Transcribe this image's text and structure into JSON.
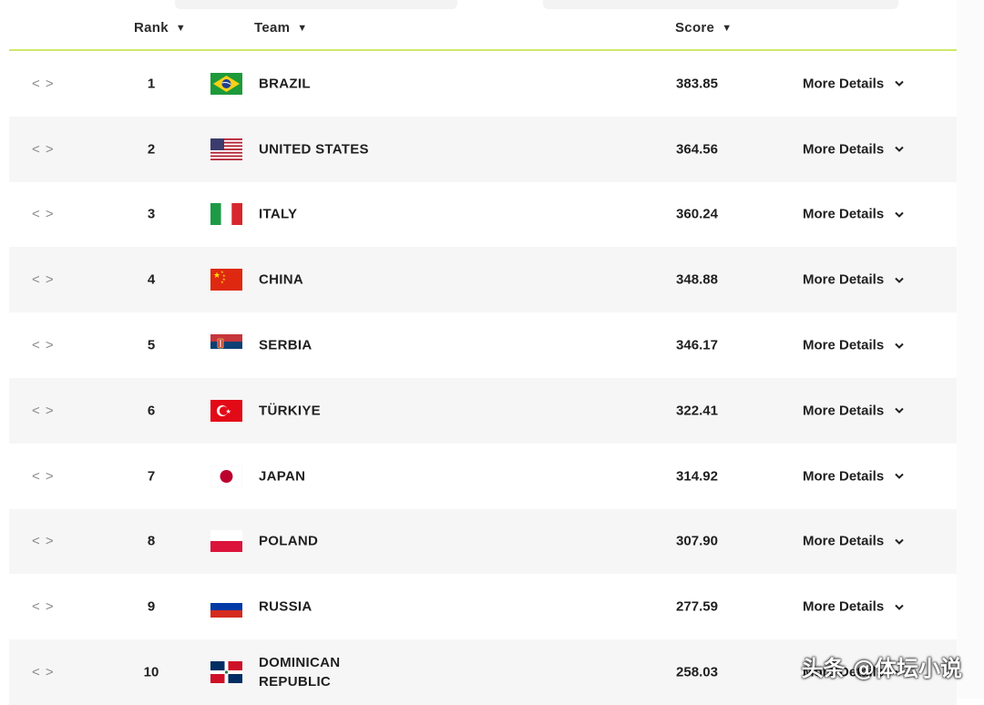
{
  "header": {
    "rank_label": "Rank",
    "team_label": "Team",
    "score_label": "Score"
  },
  "rows": [
    {
      "rank": "1",
      "team": "BRAZIL",
      "score": "383.85",
      "details": "More Details",
      "flag_icon": "brazil-flag-icon"
    },
    {
      "rank": "2",
      "team": "UNITED STATES",
      "score": "364.56",
      "details": "More Details",
      "flag_icon": "usa-flag-icon"
    },
    {
      "rank": "3",
      "team": "ITALY",
      "score": "360.24",
      "details": "More Details",
      "flag_icon": "italy-flag-icon"
    },
    {
      "rank": "4",
      "team": "CHINA",
      "score": "348.88",
      "details": "More Details",
      "flag_icon": "china-flag-icon"
    },
    {
      "rank": "5",
      "team": "SERBIA",
      "score": "346.17",
      "details": "More Details",
      "flag_icon": "serbia-flag-icon"
    },
    {
      "rank": "6",
      "team": "TÜRKIYE",
      "score": "322.41",
      "details": "More Details",
      "flag_icon": "turkiye-flag-icon"
    },
    {
      "rank": "7",
      "team": "JAPAN",
      "score": "314.92",
      "details": "More Details",
      "flag_icon": "japan-flag-icon"
    },
    {
      "rank": "8",
      "team": "POLAND",
      "score": "307.90",
      "details": "More Details",
      "flag_icon": "poland-flag-icon"
    },
    {
      "rank": "9",
      "team": "RUSSIA",
      "score": "277.59",
      "details": "More Details",
      "flag_icon": "russia-flag-icon"
    },
    {
      "rank": "10",
      "team_line1": "DOMINICAN",
      "team_line2": "REPUBLIC",
      "score": "258.03",
      "details": "More Details",
      "flag_icon": "dominican-republic-flag-icon"
    }
  ],
  "watermark": "头条 @体坛小说",
  "colors": {
    "header_underline": "#cde86a",
    "row_alt_background": "#f6f6f6"
  }
}
